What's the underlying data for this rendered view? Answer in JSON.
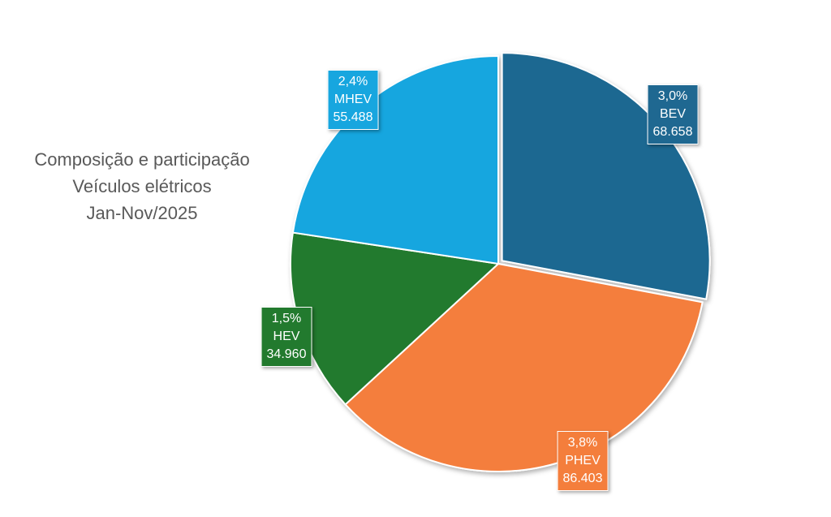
{
  "chart_data": {
    "type": "pie",
    "title_lines": [
      "Composição e participação",
      "Veículos elétricos",
      "Jan-Nov/2025"
    ],
    "slices": [
      {
        "name": "BEV",
        "percent_label": "3,0%",
        "value_label": "68.658",
        "value": 68658,
        "color": "#1f6891"
      },
      {
        "name": "PHEV",
        "percent_label": "3,8%",
        "value_label": "86.403",
        "value": 86403,
        "color": "#f47e3c"
      },
      {
        "name": "HEV",
        "percent_label": "1,5%",
        "value_label": "34.960",
        "value": 34960,
        "color": "#227a2e"
      },
      {
        "name": "MHEV",
        "percent_label": "2,4%",
        "value_label": "55.488",
        "value": 55488,
        "color": "#17a6df"
      }
    ],
    "start_angle_deg": 0,
    "exploded_slice": "BEV",
    "legend": "none"
  }
}
